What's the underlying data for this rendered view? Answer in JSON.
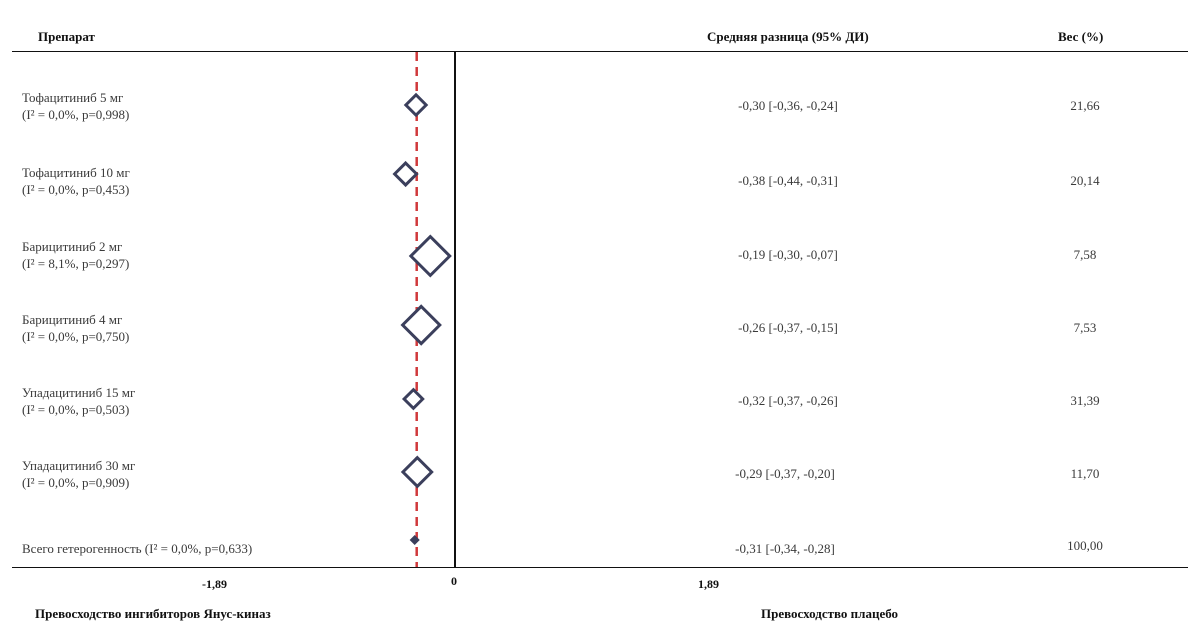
{
  "chart_data": {
    "type": "forest",
    "headers": {
      "drug": "Препарат",
      "ci": "Средняя разница (95% ДИ)",
      "weight": "Вес (%)"
    },
    "rows": [
      {
        "label": "Тофацитиниб 5 мг",
        "stat": "(I² = 0,0%, p=0,998)",
        "estimate": -0.3,
        "lower": -0.36,
        "upper": -0.24,
        "ci_text": "-0,30 [-0,36,  -0,24]",
        "weight": "21,66"
      },
      {
        "label": "Тофацитиниб 10 мг",
        "stat": "(I² = 0,0%, p=0,453)",
        "estimate": -0.38,
        "lower": -0.44,
        "upper": -0.31,
        "ci_text": "-0,38 [-0,44,  -0,31]",
        "weight": "20,14"
      },
      {
        "label": "Барицитиниб 2 мг",
        "stat": "(I² = 8,1%, p=0,297)",
        "estimate": -0.19,
        "lower": -0.3,
        "upper": -0.07,
        "ci_text": "-0,19 [-0,30,  -0,07]",
        "weight": "7,58"
      },
      {
        "label": "Барицитиниб 4 мг",
        "stat": "(I² = 0,0%, p=0,750)",
        "estimate": -0.26,
        "lower": -0.37,
        "upper": -0.15,
        "ci_text": "-0,26 [-0,37,  -0,15]",
        "weight": "7,53"
      },
      {
        "label": "Упадацитиниб 15 мг",
        "stat": "(I² = 0,0%, p=0,503)",
        "estimate": -0.32,
        "lower": -0.37,
        "upper": -0.26,
        "ci_text": "-0,32 [-0,37,  -0,26]",
        "weight": "31,39"
      },
      {
        "label": "Упадацитиниб 30 мг",
        "stat": "(I² = 0,0%, p=0,909)",
        "estimate": -0.29,
        "lower": -0.37,
        "upper": -0.2,
        "ci_text": "-0,29 [-0,37,  -0,20]",
        "weight": "11,70"
      }
    ],
    "overall": {
      "label": "Всего гетерогенность (I² = 0,0%, p=0,633)",
      "estimate": -0.31,
      "lower": -0.34,
      "upper": -0.28,
      "ci_text": "-0,31 [-0,34,  -0,28]",
      "weight": "100,00"
    },
    "x_ticks": [
      {
        "value": -1.89,
        "label": "-1,89"
      },
      {
        "value": 0,
        "label": "0"
      },
      {
        "value": 1.89,
        "label": "1,89"
      }
    ],
    "xlim": [
      -1.89,
      1.89
    ],
    "reference_line": {
      "value": -0.31,
      "style": "dashed",
      "color": "#d0393b"
    },
    "null_line": 0,
    "favours_left": "Превосходство ингибиторов Янус-киназ",
    "favours_right": "Превосходство плацебо",
    "marker_color": "#3b3f5c"
  }
}
